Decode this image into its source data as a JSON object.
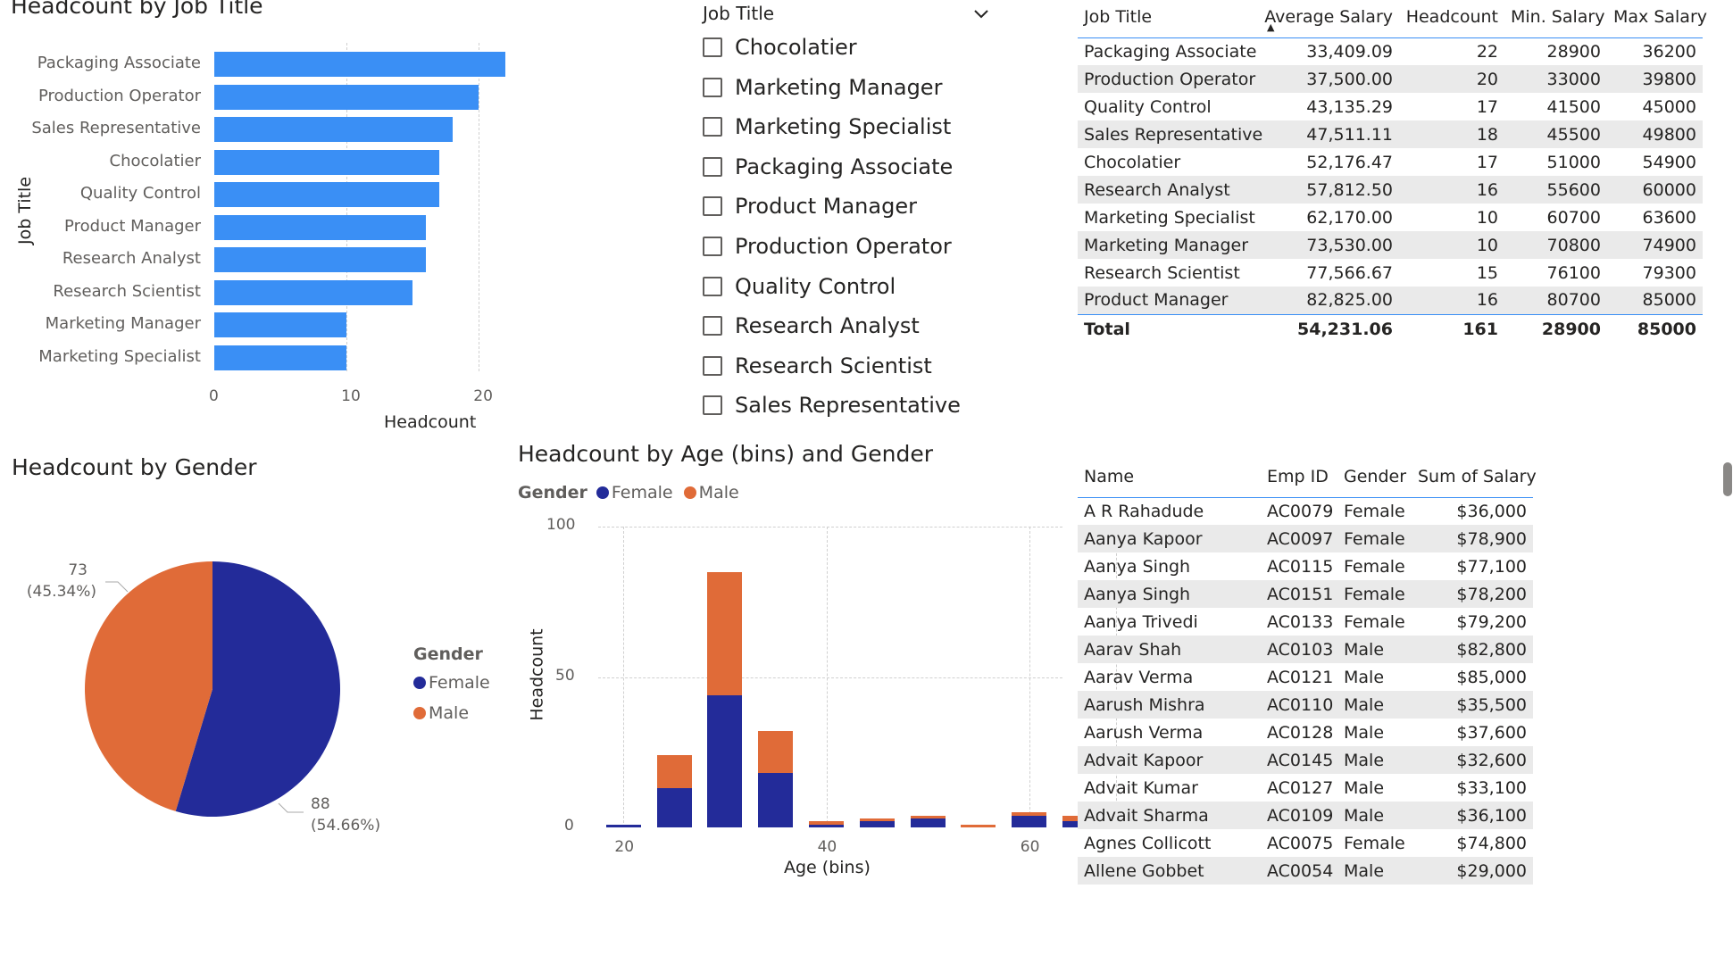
{
  "colors": {
    "bar": "#3a8ff5",
    "female": "#232b99",
    "male": "#e06b38",
    "accent": "#3a8ff5"
  },
  "bar_chart": {
    "title": "Headcount by Job Title",
    "y_axis_title": "Job Title",
    "x_axis_title": "Headcount",
    "x_ticks": [
      "0",
      "10",
      "20"
    ]
  },
  "slicer": {
    "header": "Job Title",
    "items": [
      "Chocolatier",
      "Marketing Manager",
      "Marketing Specialist",
      "Packaging Associate",
      "Product Manager",
      "Production Operator",
      "Quality Control",
      "Research Analyst",
      "Research Scientist",
      "Sales Representative"
    ]
  },
  "salary_table": {
    "headers": [
      "Job Title",
      "Average Salary",
      "Headcount",
      "Min. Salary",
      "Max Salary"
    ],
    "rows": [
      [
        "Packaging Associate",
        "33,409.09",
        "22",
        "28900",
        "36200"
      ],
      [
        "Production Operator",
        "37,500.00",
        "20",
        "33000",
        "39800"
      ],
      [
        "Quality Control",
        "43,135.29",
        "17",
        "41500",
        "45000"
      ],
      [
        "Sales Representative",
        "47,511.11",
        "18",
        "45500",
        "49800"
      ],
      [
        "Chocolatier",
        "52,176.47",
        "17",
        "51000",
        "54900"
      ],
      [
        "Research Analyst",
        "57,812.50",
        "16",
        "55600",
        "60000"
      ],
      [
        "Marketing Specialist",
        "62,170.00",
        "10",
        "60700",
        "63600"
      ],
      [
        "Marketing Manager",
        "73,530.00",
        "10",
        "70800",
        "74900"
      ],
      [
        "Research Scientist",
        "77,566.67",
        "15",
        "76100",
        "79300"
      ],
      [
        "Product Manager",
        "82,825.00",
        "16",
        "80700",
        "85000"
      ]
    ],
    "total": [
      "Total",
      "54,231.06",
      "161",
      "28900",
      "85000"
    ],
    "sort_indicator": "▲"
  },
  "pie_chart": {
    "title": "Headcount by Gender",
    "legend_title": "Gender",
    "legend": [
      "Female",
      "Male"
    ],
    "male_label_value": "73",
    "male_label_pct": "(45.34%)",
    "female_label_value": "88",
    "female_label_pct": "(54.66%)"
  },
  "age_chart": {
    "title": "Headcount by Age (bins) and Gender",
    "legend_title": "Gender",
    "legend": [
      "Female",
      "Male"
    ],
    "y_axis_title": "Headcount",
    "x_axis_title": "Age (bins)",
    "y_ticks": [
      "100",
      "50",
      "0"
    ],
    "x_ticks": [
      "20",
      "40",
      "60"
    ]
  },
  "employee_table": {
    "headers": [
      "Name",
      "Emp ID",
      "Gender",
      "Sum of Salary"
    ],
    "rows": [
      [
        "A R Rahadude",
        "AC0079",
        "Female",
        "$36,000"
      ],
      [
        "Aanya Kapoor",
        "AC0097",
        "Female",
        "$78,900"
      ],
      [
        "Aanya Singh",
        "AC0115",
        "Female",
        "$77,100"
      ],
      [
        "Aanya Singh",
        "AC0151",
        "Female",
        "$78,200"
      ],
      [
        "Aanya Trivedi",
        "AC0133",
        "Female",
        "$79,200"
      ],
      [
        "Aarav Shah",
        "AC0103",
        "Male",
        "$82,800"
      ],
      [
        "Aarav Verma",
        "AC0121",
        "Male",
        "$85,000"
      ],
      [
        "Aarush Mishra",
        "AC0110",
        "Male",
        "$35,500"
      ],
      [
        "Aarush Verma",
        "AC0128",
        "Male",
        "$37,600"
      ],
      [
        "Advait Kapoor",
        "AC0145",
        "Male",
        "$32,600"
      ],
      [
        "Advait Kumar",
        "AC0127",
        "Male",
        "$33,100"
      ],
      [
        "Advait Sharma",
        "AC0109",
        "Male",
        "$36,100"
      ],
      [
        "Agnes Collicott",
        "AC0075",
        "Female",
        "$74,800"
      ],
      [
        "Allene Gobbet",
        "AC0054",
        "Male",
        "$29,000"
      ]
    ]
  },
  "chart_data": [
    {
      "type": "bar",
      "title": "Headcount by Job Title",
      "xlabel": "Headcount",
      "ylabel": "Job Title",
      "categories": [
        "Packaging Associate",
        "Production Operator",
        "Sales Representative",
        "Chocolatier",
        "Quality Control",
        "Product Manager",
        "Research Analyst",
        "Research Scientist",
        "Marketing Manager",
        "Marketing Specialist"
      ],
      "values": [
        22,
        20,
        18,
        17,
        17,
        16,
        16,
        15,
        10,
        10
      ],
      "xlim": [
        0,
        27
      ],
      "grid": true
    },
    {
      "type": "pie",
      "title": "Headcount by Gender",
      "categories": [
        "Female",
        "Male"
      ],
      "values": [
        88,
        73
      ],
      "legend": "right"
    },
    {
      "type": "bar",
      "stacked": true,
      "title": "Headcount by Age (bins) and Gender",
      "xlabel": "Age (bins)",
      "ylabel": "Headcount",
      "x": [
        20,
        25,
        30,
        35,
        40,
        45,
        50,
        55,
        60,
        65
      ],
      "series": [
        {
          "name": "Female",
          "values": [
            1,
            13,
            44,
            18,
            1,
            2,
            3,
            0,
            4,
            2
          ]
        },
        {
          "name": "Male",
          "values": [
            0,
            11,
            41,
            14,
            1,
            1,
            1,
            1,
            1,
            2
          ]
        }
      ],
      "ylim": [
        0,
        100
      ],
      "xlim": [
        17.5,
        69
      ],
      "grid": true,
      "legend": "top-left"
    }
  ]
}
